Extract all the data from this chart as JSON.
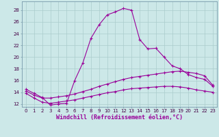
{
  "xlabel": "Windchill (Refroidissement éolien,°C)",
  "background_color": "#cce8e8",
  "line_color": "#990099",
  "xlim": [
    -0.5,
    23.5
  ],
  "ylim": [
    11.5,
    29.5
  ],
  "xticks": [
    0,
    1,
    2,
    3,
    4,
    5,
    6,
    7,
    8,
    9,
    10,
    11,
    12,
    13,
    14,
    15,
    16,
    17,
    18,
    19,
    20,
    21,
    22,
    23
  ],
  "yticks": [
    12,
    14,
    16,
    18,
    20,
    22,
    24,
    26,
    28
  ],
  "line1_x": [
    0,
    1,
    2,
    3,
    4,
    5,
    6,
    7,
    8,
    9,
    10,
    11,
    12,
    13,
    14,
    15,
    16,
    17,
    18,
    19,
    20,
    21,
    22,
    23
  ],
  "line1_y": [
    14.5,
    13.8,
    13.1,
    11.8,
    12.0,
    12.1,
    16.0,
    19.0,
    23.2,
    25.5,
    27.2,
    27.7,
    28.3,
    28.0,
    23.0,
    21.4,
    21.5,
    20.0,
    18.5,
    18.0,
    17.0,
    16.5,
    16.2,
    15.0
  ],
  "line2_x": [
    0,
    1,
    2,
    3,
    4,
    5,
    6,
    7,
    8,
    9,
    10,
    11,
    12,
    13,
    14,
    15,
    16,
    17,
    18,
    19,
    20,
    21,
    22,
    23
  ],
  "line2_y": [
    14.2,
    13.5,
    13.0,
    13.0,
    13.2,
    13.4,
    13.7,
    14.1,
    14.5,
    15.0,
    15.4,
    15.8,
    16.2,
    16.5,
    16.7,
    16.9,
    17.1,
    17.3,
    17.5,
    17.6,
    17.4,
    17.2,
    16.8,
    15.2
  ],
  "line3_x": [
    0,
    1,
    2,
    3,
    4,
    5,
    6,
    7,
    8,
    9,
    10,
    11,
    12,
    13,
    14,
    15,
    16,
    17,
    18,
    19,
    20,
    21,
    22,
    23
  ],
  "line3_y": [
    13.8,
    13.0,
    12.3,
    12.1,
    12.3,
    12.5,
    12.7,
    13.0,
    13.3,
    13.6,
    13.9,
    14.1,
    14.4,
    14.6,
    14.7,
    14.8,
    14.9,
    15.0,
    15.0,
    14.9,
    14.7,
    14.4,
    14.2,
    14.0
  ],
  "grid_color": "#aacccc",
  "spine_color": "#7799aa",
  "xlabel_fontsize": 6,
  "tick_fontsize": 5
}
